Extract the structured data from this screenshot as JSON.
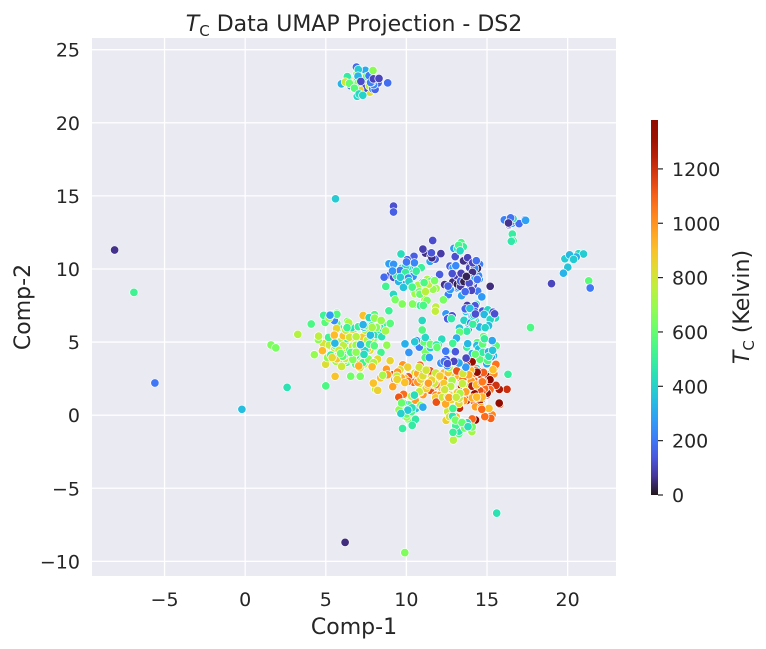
{
  "chart_data": {
    "type": "scatter",
    "title_italic": "T",
    "title_sub": "C",
    "title_rest": " Data UMAP Projection - DS2",
    "xlabel": "Comp-1",
    "ylabel": "Comp-2",
    "xlim": [
      -9.5,
      23
    ],
    "ylim": [
      -11,
      25.8
    ],
    "xticks": [
      -5,
      0,
      5,
      10,
      15,
      20
    ],
    "yticks": [
      -10,
      -5,
      0,
      5,
      10,
      15,
      20,
      25
    ],
    "xtick_labels": [
      "−5",
      "0",
      "5",
      "10",
      "15",
      "20"
    ],
    "ytick_labels": [
      "−10",
      "−5",
      "0",
      "5",
      "10",
      "15",
      "20",
      "25"
    ],
    "grid": true,
    "colorbar": {
      "label_italic": "T",
      "label_sub": "C",
      "label_rest": " (Kelvin)",
      "range": [
        0,
        1380
      ],
      "ticks": [
        0,
        200,
        400,
        600,
        800,
        1000,
        1200
      ],
      "tick_labels": [
        "0",
        "200",
        "400",
        "600",
        "800",
        "1000",
        "1200"
      ],
      "colormap": "turbo"
    },
    "points": [
      {
        "x": -8.1,
        "y": 11.3,
        "c": 60
      },
      {
        "x": -6.9,
        "y": 8.4,
        "c": 520
      },
      {
        "x": -5.6,
        "y": 2.2,
        "c": 200
      },
      {
        "x": -0.2,
        "y": 0.4,
        "c": 350
      },
      {
        "x": 1.6,
        "y": 4.8,
        "c": 650
      },
      {
        "x": 1.9,
        "y": 4.6,
        "c": 640
      },
      {
        "x": 2.6,
        "y": 1.9,
        "c": 450
      },
      {
        "x": 5.0,
        "y": 2.0,
        "c": 550
      },
      {
        "x": 5.6,
        "y": 14.8,
        "c": 380
      },
      {
        "x": 6.2,
        "y": -8.7,
        "c": 50
      },
      {
        "x": 9.9,
        "y": -9.4,
        "c": 650
      },
      {
        "x": 15.6,
        "y": -6.7,
        "c": 450
      },
      {
        "x": 9.2,
        "y": 14.3,
        "c": 120
      },
      {
        "x": 9.2,
        "y": 13.9,
        "c": 150
      },
      {
        "x": 17.7,
        "y": 6.0,
        "c": 550
      },
      {
        "x": 21.4,
        "y": 8.7,
        "c": 200
      },
      {
        "x": 19.0,
        "y": 9.0,
        "c": 100
      },
      {
        "x": 16.3,
        "y": 2.8,
        "c": 500
      }
    ],
    "clusters": [
      {
        "cx": 7.1,
        "cy": 22.9,
        "sx": 0.55,
        "sy": 0.45,
        "n": 45,
        "cmin": 100,
        "cmax": 900
      },
      {
        "cx": 7.9,
        "cy": 22.5,
        "sx": 0.5,
        "sy": 0.3,
        "n": 10,
        "cmin": 50,
        "cmax": 250
      },
      {
        "cx": 16.6,
        "cy": 13.3,
        "sx": 0.3,
        "sy": 0.35,
        "n": 12,
        "cmin": 50,
        "cmax": 450
      },
      {
        "cx": 16.5,
        "cy": 12.0,
        "sx": 0.1,
        "sy": 0.2,
        "n": 3,
        "cmin": 450,
        "cmax": 550
      },
      {
        "cx": 20.3,
        "cy": 10.3,
        "sx": 0.5,
        "sy": 0.5,
        "n": 10,
        "cmin": 300,
        "cmax": 600
      },
      {
        "cx": 6.4,
        "cy": 4.6,
        "sx": 0.9,
        "sy": 0.8,
        "n": 130,
        "cmin": 500,
        "cmax": 950
      },
      {
        "cx": 7.6,
        "cy": 6.0,
        "sx": 0.6,
        "sy": 0.7,
        "n": 40,
        "cmin": 300,
        "cmax": 800
      },
      {
        "cx": 5.2,
        "cy": 6.7,
        "sx": 0.25,
        "sy": 0.3,
        "n": 10,
        "cmin": 150,
        "cmax": 900
      },
      {
        "cx": 10.0,
        "cy": 9.5,
        "sx": 0.9,
        "sy": 0.8,
        "n": 40,
        "cmin": 50,
        "cmax": 600
      },
      {
        "cx": 13.3,
        "cy": 9.5,
        "sx": 0.8,
        "sy": 0.9,
        "n": 60,
        "cmin": 20,
        "cmax": 300
      },
      {
        "cx": 11.0,
        "cy": 8.2,
        "sx": 0.8,
        "sy": 0.6,
        "n": 30,
        "cmin": 500,
        "cmax": 800
      },
      {
        "cx": 14.2,
        "cy": 6.9,
        "sx": 0.8,
        "sy": 0.5,
        "n": 35,
        "cmin": 100,
        "cmax": 500
      },
      {
        "cx": 11.5,
        "cy": 11.0,
        "sx": 0.5,
        "sy": 0.3,
        "n": 8,
        "cmin": 30,
        "cmax": 150
      },
      {
        "cx": 13.3,
        "cy": 11.4,
        "sx": 0.2,
        "sy": 0.3,
        "n": 6,
        "cmin": 400,
        "cmax": 600
      },
      {
        "cx": 11.0,
        "cy": 5.0,
        "sx": 0.9,
        "sy": 0.6,
        "n": 25,
        "cmin": 200,
        "cmax": 700
      },
      {
        "cx": 14.5,
        "cy": 4.2,
        "sx": 0.7,
        "sy": 0.6,
        "n": 30,
        "cmin": 200,
        "cmax": 600
      },
      {
        "cx": 14.3,
        "cy": 2.0,
        "sx": 0.7,
        "sy": 0.8,
        "n": 120,
        "cmin": 900,
        "cmax": 1370
      },
      {
        "cx": 11.0,
        "cy": 2.3,
        "sx": 1.0,
        "sy": 0.7,
        "n": 70,
        "cmin": 750,
        "cmax": 1150
      },
      {
        "cx": 13.0,
        "cy": 1.2,
        "sx": 0.6,
        "sy": 0.9,
        "n": 35,
        "cmin": 700,
        "cmax": 1000
      },
      {
        "cx": 10.2,
        "cy": 0.3,
        "sx": 0.4,
        "sy": 0.5,
        "n": 25,
        "cmin": 300,
        "cmax": 700
      },
      {
        "cx": 13.5,
        "cy": -0.6,
        "sx": 0.4,
        "sy": 0.3,
        "n": 15,
        "cmin": 400,
        "cmax": 750
      },
      {
        "cx": 8.9,
        "cy": 2.5,
        "sx": 0.6,
        "sy": 0.5,
        "n": 15,
        "cmin": 700,
        "cmax": 1000
      },
      {
        "cx": 12.4,
        "cy": 3.6,
        "sx": 0.6,
        "sy": 0.3,
        "n": 15,
        "cmin": 100,
        "cmax": 350
      }
    ]
  }
}
